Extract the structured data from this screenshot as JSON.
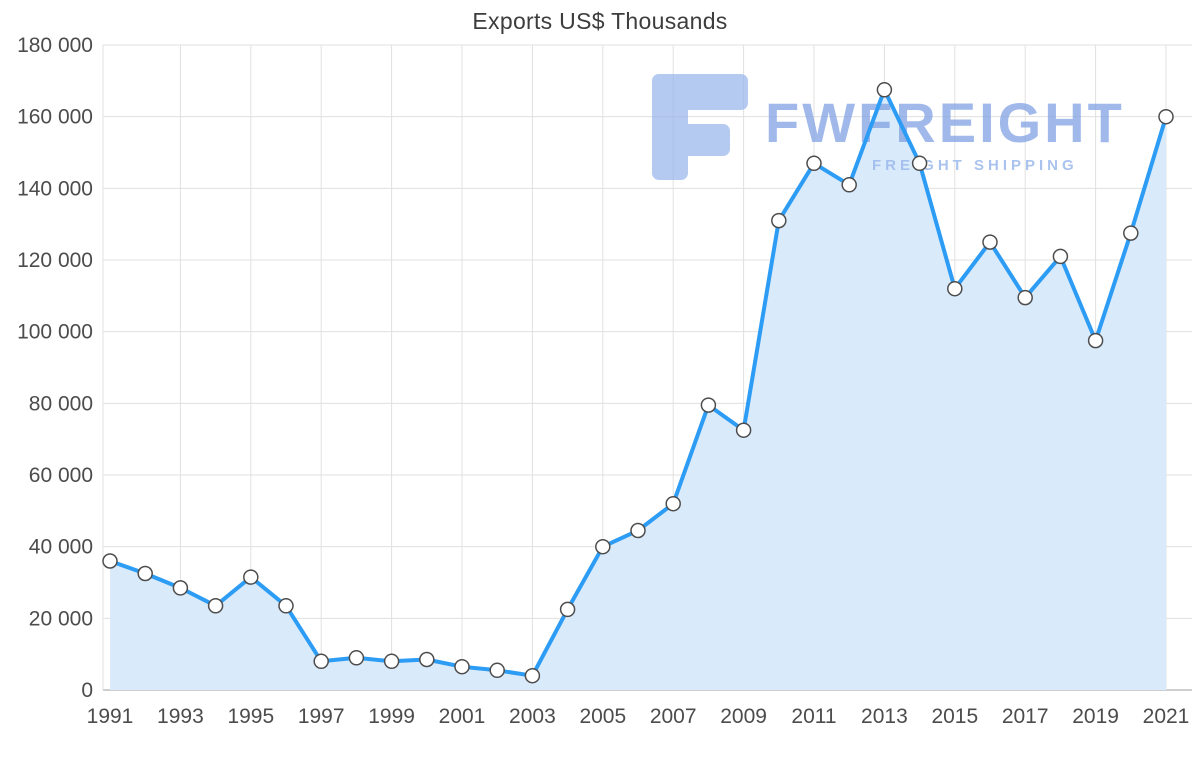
{
  "chart_data": {
    "type": "area",
    "title": "Exports US$ Thousands",
    "x": [
      1991,
      1992,
      1993,
      1994,
      1995,
      1996,
      1997,
      1998,
      1999,
      2000,
      2001,
      2002,
      2003,
      2004,
      2005,
      2006,
      2007,
      2008,
      2009,
      2010,
      2011,
      2012,
      2013,
      2014,
      2015,
      2016,
      2017,
      2018,
      2019,
      2020,
      2021
    ],
    "values": [
      36000,
      32500,
      28500,
      23500,
      31500,
      23500,
      8000,
      9000,
      8000,
      8500,
      6500,
      5500,
      4000,
      22500,
      40000,
      44500,
      52000,
      79500,
      72500,
      131000,
      147000,
      141000,
      167500,
      147000,
      112000,
      125000,
      109500,
      121000,
      97500,
      127500,
      160000
    ],
    "ylim": [
      0,
      180000
    ],
    "y_tick_step": 20000,
    "x_tick_step": 2,
    "grid": true,
    "legend": "none",
    "colors": {
      "line": "#2d9cf5",
      "area_fill": "#d9eafb",
      "marker_fill": "#ffffff",
      "marker_stroke": "#4d4d4d",
      "grid": "#e0e0e0",
      "axis": "#9e9e9e",
      "text": "#4c4c4c"
    }
  },
  "watermark": {
    "brand": "FWFREIGHT",
    "tagline": "FREIGHT SHIPPING",
    "brand_color": "#7d9fe2",
    "tagline_color": "#9cb9ec",
    "logo_color": "#97b4ea"
  }
}
